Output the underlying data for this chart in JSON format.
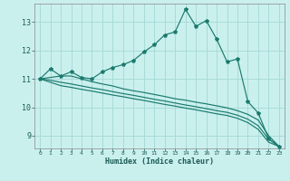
{
  "xlabel": "Humidex (Indice chaleur)",
  "background_color": "#caf0ee",
  "grid_color": "#a8dbd8",
  "line_color": "#1a7a6e",
  "x_values": [
    0,
    1,
    2,
    3,
    4,
    5,
    6,
    7,
    8,
    9,
    10,
    11,
    12,
    13,
    14,
    15,
    16,
    17,
    18,
    19,
    20,
    21,
    22,
    23
  ],
  "line1_y": [
    11.0,
    11.35,
    11.1,
    11.25,
    11.05,
    11.0,
    11.25,
    11.4,
    11.5,
    11.65,
    11.95,
    12.2,
    12.55,
    12.65,
    13.45,
    12.85,
    13.05,
    12.4,
    11.6,
    11.7,
    10.2,
    9.8,
    8.9,
    8.6
  ],
  "line2_y": [
    11.0,
    11.05,
    11.1,
    11.1,
    11.0,
    10.9,
    10.82,
    10.75,
    10.65,
    10.58,
    10.52,
    10.45,
    10.38,
    10.3,
    10.25,
    10.18,
    10.12,
    10.05,
    9.98,
    9.88,
    9.75,
    9.55,
    9.0,
    8.62
  ],
  "line3_y": [
    11.0,
    10.95,
    10.88,
    10.82,
    10.75,
    10.68,
    10.62,
    10.55,
    10.48,
    10.42,
    10.35,
    10.28,
    10.22,
    10.15,
    10.08,
    10.02,
    9.95,
    9.88,
    9.82,
    9.72,
    9.58,
    9.35,
    8.88,
    8.62
  ],
  "line4_y": [
    11.0,
    10.88,
    10.76,
    10.7,
    10.63,
    10.57,
    10.5,
    10.43,
    10.37,
    10.3,
    10.24,
    10.17,
    10.1,
    10.04,
    9.97,
    9.91,
    9.84,
    9.77,
    9.71,
    9.61,
    9.46,
    9.22,
    8.77,
    8.62
  ],
  "ylim": [
    8.55,
    13.65
  ],
  "xlim": [
    -0.5,
    23.5
  ],
  "yticks": [
    9,
    10,
    11,
    12,
    13
  ],
  "xticks": [
    0,
    1,
    2,
    3,
    4,
    5,
    6,
    7,
    8,
    9,
    10,
    11,
    12,
    13,
    14,
    15,
    16,
    17,
    18,
    19,
    20,
    21,
    22,
    23
  ]
}
